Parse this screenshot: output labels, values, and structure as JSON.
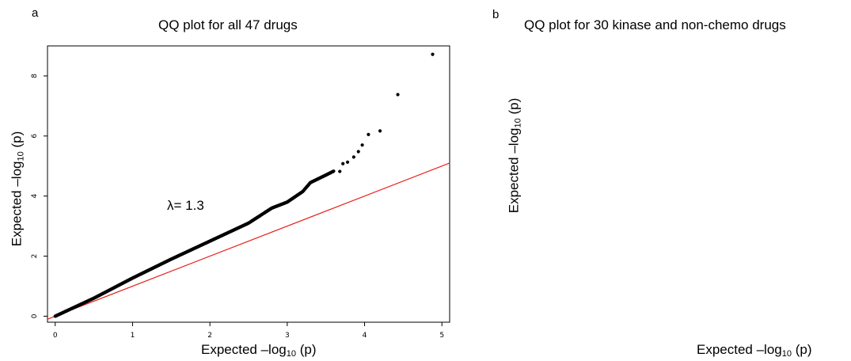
{
  "panel_a": {
    "letter": "a",
    "title": "QQ plot for all 47 drugs",
    "xlabel_main": "Expected –log",
    "xlabel_sub": "10",
    "xlabel_tail": " (p)",
    "ylabel_main": "Expected –log",
    "ylabel_sub": "10",
    "ylabel_tail": " (p)",
    "annotation": "λ= 1.3"
  },
  "panel_b": {
    "letter": "b",
    "title": "QQ plot for 30 kinase and non-chemo drugs",
    "xlabel_main": "Expected –log",
    "xlabel_sub": "10",
    "xlabel_tail": " (p)",
    "ylabel_main": "Expected –log",
    "ylabel_sub": "10",
    "ylabel_tail": " (p)"
  },
  "colors": {
    "points": "#000000",
    "reference_line": "#e8231b",
    "frame": "#000000"
  },
  "chart_data": [
    {
      "type": "scatter",
      "title": "QQ plot for all 47 drugs",
      "xlabel": "Expected –log10 (p)",
      "ylabel": "Expected –log10 (p)",
      "xlim": [
        -0.1,
        5.1
      ],
      "ylim": [
        -0.2,
        9.0
      ],
      "xticks": [
        0,
        1,
        2,
        3,
        4,
        5
      ],
      "yticks": [
        0,
        2,
        4,
        6,
        8
      ],
      "annotation": "λ= 1.3",
      "reference_line": {
        "slope": 1,
        "intercept": 0
      },
      "curve_samples": [
        [
          0,
          0
        ],
        [
          0.5,
          0.6
        ],
        [
          1.0,
          1.27
        ],
        [
          1.5,
          1.9
        ],
        [
          2.0,
          2.5
        ],
        [
          2.5,
          3.1
        ],
        [
          2.8,
          3.6
        ],
        [
          3.0,
          3.8
        ],
        [
          3.2,
          4.15
        ],
        [
          3.3,
          4.45
        ],
        [
          3.42,
          4.6
        ],
        [
          3.5,
          4.7
        ],
        [
          3.6,
          4.83
        ]
      ],
      "tail_points": [
        [
          3.68,
          4.82
        ],
        [
          3.72,
          5.08
        ],
        [
          3.78,
          5.13
        ],
        [
          3.86,
          5.3
        ],
        [
          3.92,
          5.48
        ],
        [
          3.97,
          5.7
        ],
        [
          4.05,
          6.05
        ],
        [
          4.2,
          6.17
        ],
        [
          4.43,
          7.38
        ],
        [
          4.88,
          8.72
        ]
      ]
    },
    {
      "type": "scatter",
      "title": "QQ plot for 30 kinase and non-chemo drugs",
      "xlabel": "Expected –log10 (p)",
      "ylabel": "Expected –log10 (p)",
      "points": []
    }
  ]
}
